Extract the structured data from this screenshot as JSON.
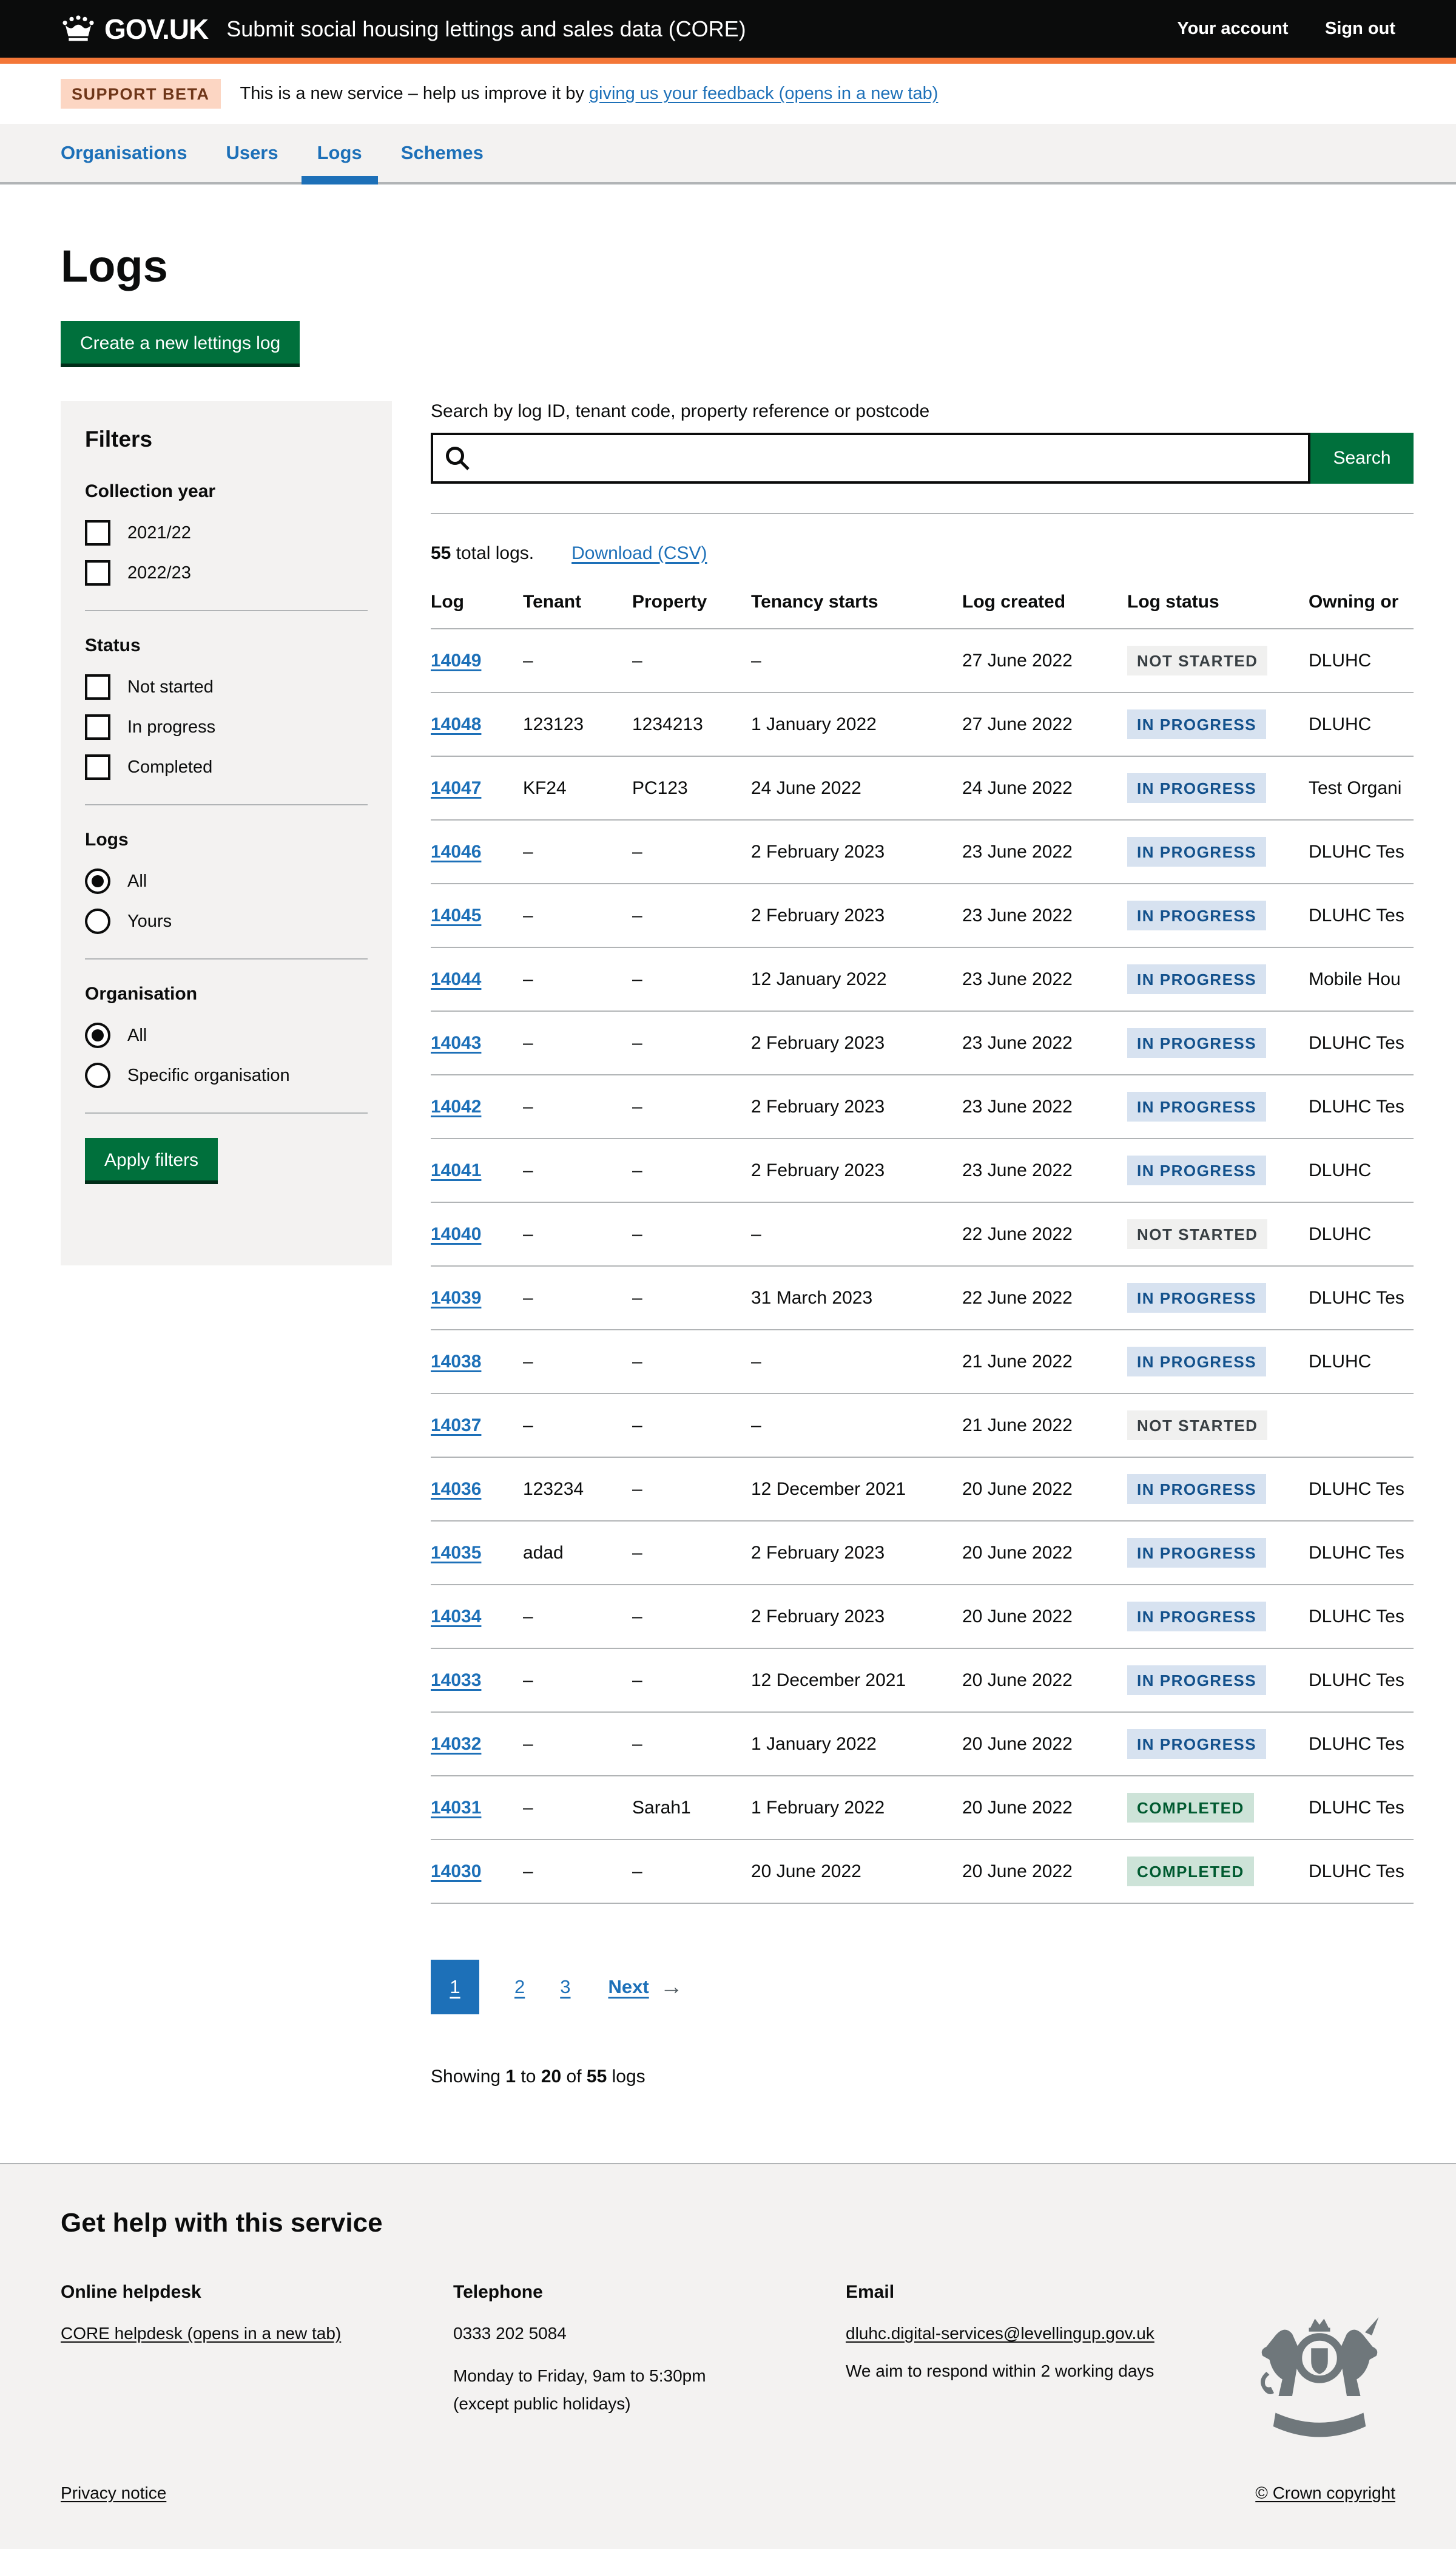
{
  "header": {
    "logo_text": "GOV.UK",
    "service_name": "Submit social housing lettings and sales data (CORE)",
    "your_account": "Your account",
    "sign_out": "Sign out"
  },
  "phase_banner": {
    "tag": "SUPPORT BETA",
    "text_before_link": "This is a new service – help us improve it by ",
    "link": "giving us your feedback (opens in a new tab)"
  },
  "nav": {
    "items": [
      {
        "label": "Organisations",
        "active": false
      },
      {
        "label": "Users",
        "active": false
      },
      {
        "label": "Logs",
        "active": true
      },
      {
        "label": "Schemes",
        "active": false
      }
    ]
  },
  "page": {
    "title": "Logs",
    "create_button": "Create a new lettings log"
  },
  "filters": {
    "heading": "Filters",
    "apply_button": "Apply filters",
    "groups": [
      {
        "label": "Collection year",
        "type": "checkbox",
        "options": [
          {
            "label": "2021/22",
            "checked": false
          },
          {
            "label": "2022/23",
            "checked": false
          }
        ]
      },
      {
        "label": "Status",
        "type": "checkbox",
        "options": [
          {
            "label": "Not started",
            "checked": false
          },
          {
            "label": "In progress",
            "checked": false
          },
          {
            "label": "Completed",
            "checked": false
          }
        ]
      },
      {
        "label": "Logs",
        "type": "radio",
        "options": [
          {
            "label": "All",
            "checked": true
          },
          {
            "label": "Yours",
            "checked": false
          }
        ]
      },
      {
        "label": "Organisation",
        "type": "radio",
        "options": [
          {
            "label": "All",
            "checked": true
          },
          {
            "label": "Specific organisation",
            "checked": false
          }
        ]
      }
    ]
  },
  "search": {
    "label": "Search by log ID, tenant code, property reference or postcode",
    "value": "",
    "button": "Search"
  },
  "results": {
    "total_count": "55",
    "total_suffix": " total logs.",
    "download_link": "Download (CSV)"
  },
  "table": {
    "headers": [
      "Log",
      "Tenant",
      "Property",
      "Tenancy starts",
      "Log created",
      "Log status",
      "Owning or"
    ],
    "rows": [
      {
        "log": "14049",
        "tenant": "–",
        "property": "–",
        "tenancy_starts": "–",
        "log_created": "27 June 2022",
        "status": "NOT STARTED",
        "status_type": "grey",
        "owning": "DLUHC"
      },
      {
        "log": "14048",
        "tenant": "123123",
        "property": "1234213",
        "tenancy_starts": "1 January 2022",
        "log_created": "27 June 2022",
        "status": "IN PROGRESS",
        "status_type": "blue",
        "owning": "DLUHC"
      },
      {
        "log": "14047",
        "tenant": "KF24",
        "property": "PC123",
        "tenancy_starts": "24 June 2022",
        "log_created": "24 June 2022",
        "status": "IN PROGRESS",
        "status_type": "blue",
        "owning": "Test Organi"
      },
      {
        "log": "14046",
        "tenant": "–",
        "property": "–",
        "tenancy_starts": "2 February 2023",
        "log_created": "23 June 2022",
        "status": "IN PROGRESS",
        "status_type": "blue",
        "owning": "DLUHC Tes"
      },
      {
        "log": "14045",
        "tenant": "–",
        "property": "–",
        "tenancy_starts": "2 February 2023",
        "log_created": "23 June 2022",
        "status": "IN PROGRESS",
        "status_type": "blue",
        "owning": "DLUHC Tes"
      },
      {
        "log": "14044",
        "tenant": "–",
        "property": "–",
        "tenancy_starts": "12 January 2022",
        "log_created": "23 June 2022",
        "status": "IN PROGRESS",
        "status_type": "blue",
        "owning": "Mobile Hou"
      },
      {
        "log": "14043",
        "tenant": "–",
        "property": "–",
        "tenancy_starts": "2 February 2023",
        "log_created": "23 June 2022",
        "status": "IN PROGRESS",
        "status_type": "blue",
        "owning": "DLUHC Tes"
      },
      {
        "log": "14042",
        "tenant": "–",
        "property": "–",
        "tenancy_starts": "2 February 2023",
        "log_created": "23 June 2022",
        "status": "IN PROGRESS",
        "status_type": "blue",
        "owning": "DLUHC Tes"
      },
      {
        "log": "14041",
        "tenant": "–",
        "property": "–",
        "tenancy_starts": "2 February 2023",
        "log_created": "23 June 2022",
        "status": "IN PROGRESS",
        "status_type": "blue",
        "owning": "DLUHC"
      },
      {
        "log": "14040",
        "tenant": "–",
        "property": "–",
        "tenancy_starts": "–",
        "log_created": "22 June 2022",
        "status": "NOT STARTED",
        "status_type": "grey",
        "owning": "DLUHC"
      },
      {
        "log": "14039",
        "tenant": "–",
        "property": "–",
        "tenancy_starts": "31 March 2023",
        "log_created": "22 June 2022",
        "status": "IN PROGRESS",
        "status_type": "blue",
        "owning": "DLUHC Tes"
      },
      {
        "log": "14038",
        "tenant": "–",
        "property": "–",
        "tenancy_starts": "–",
        "log_created": "21 June 2022",
        "status": "IN PROGRESS",
        "status_type": "blue",
        "owning": "DLUHC"
      },
      {
        "log": "14037",
        "tenant": "–",
        "property": "–",
        "tenancy_starts": "–",
        "log_created": "21 June 2022",
        "status": "NOT STARTED",
        "status_type": "grey",
        "owning": ""
      },
      {
        "log": "14036",
        "tenant": "123234",
        "property": "–",
        "tenancy_starts": "12 December 2021",
        "log_created": "20 June 2022",
        "status": "IN PROGRESS",
        "status_type": "blue",
        "owning": "DLUHC Tes"
      },
      {
        "log": "14035",
        "tenant": "adad",
        "property": "–",
        "tenancy_starts": "2 February 2023",
        "log_created": "20 June 2022",
        "status": "IN PROGRESS",
        "status_type": "blue",
        "owning": "DLUHC Tes"
      },
      {
        "log": "14034",
        "tenant": "–",
        "property": "–",
        "tenancy_starts": "2 February 2023",
        "log_created": "20 June 2022",
        "status": "IN PROGRESS",
        "status_type": "blue",
        "owning": "DLUHC Tes"
      },
      {
        "log": "14033",
        "tenant": "–",
        "property": "–",
        "tenancy_starts": "12 December 2021",
        "log_created": "20 June 2022",
        "status": "IN PROGRESS",
        "status_type": "blue",
        "owning": "DLUHC Tes"
      },
      {
        "log": "14032",
        "tenant": "–",
        "property": "–",
        "tenancy_starts": "1 January 2022",
        "log_created": "20 June 2022",
        "status": "IN PROGRESS",
        "status_type": "blue",
        "owning": "DLUHC Tes"
      },
      {
        "log": "14031",
        "tenant": "–",
        "property": "Sarah1",
        "tenancy_starts": "1 February 2022",
        "log_created": "20 June 2022",
        "status": "COMPLETED",
        "status_type": "green",
        "owning": "DLUHC Tes"
      },
      {
        "log": "14030",
        "tenant": "–",
        "property": "–",
        "tenancy_starts": "20 June 2022",
        "log_created": "20 June 2022",
        "status": "COMPLETED",
        "status_type": "green",
        "owning": "DLUHC Tes"
      }
    ]
  },
  "pagination": {
    "current": "1",
    "pages": [
      "2",
      "3"
    ],
    "next": "Next",
    "showing": {
      "prefix": "Showing",
      "from": "1",
      "to_word": "to",
      "to": "20",
      "of_word": "of",
      "count": "55",
      "suffix": "logs"
    }
  },
  "footer": {
    "heading": "Get help with this service",
    "helpdesk_title": "Online helpdesk",
    "helpdesk_link": "CORE helpdesk (opens in a new tab)",
    "telephone_title": "Telephone",
    "telephone_number": "0333 202 5084",
    "telephone_hours_1": "Monday to Friday, 9am to 5:30pm",
    "telephone_hours_2": "(except public holidays)",
    "email_title": "Email",
    "email_link": "dluhc.digital-services@levellingup.gov.uk",
    "email_note": "We aim to respond within 2 working days",
    "privacy_link": "Privacy notice",
    "copyright_link": "© Crown copyright"
  },
  "icons": {
    "crown": "crown-icon",
    "search": "search-icon",
    "next_arrow": "arrow-right-icon",
    "crest": "royal-coat-of-arms"
  },
  "colors": {
    "brand_black": "#0b0c0c",
    "accent_orange": "#f47738",
    "link_blue": "#1d70b8",
    "button_green": "#00703c",
    "panel_grey": "#f3f2f1",
    "border_grey": "#b1b4b6",
    "tag_grey_bg": "#f0f0ef",
    "tag_grey_text": "#383f43",
    "tag_blue_bg": "#d7e2f0",
    "tag_blue_text": "#13518c",
    "tag_green_bg": "#cde3d8",
    "tag_green_text": "#005a30"
  }
}
